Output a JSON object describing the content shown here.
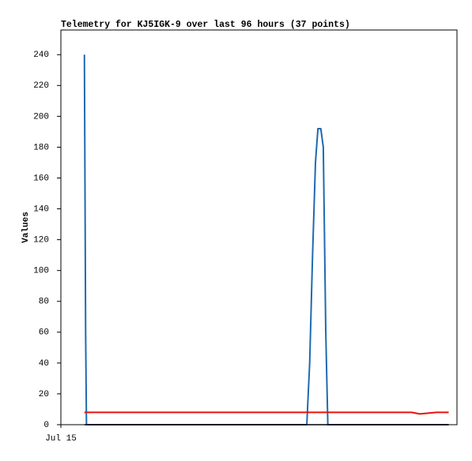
{
  "chart_data": {
    "type": "line",
    "title": "Telemetry for KJ5IGK-9 over last 96 hours (37 points)",
    "y_label": "Values",
    "x": [
      5.7,
      5.8,
      6.0,
      6.2,
      9,
      13,
      17,
      21,
      25,
      29,
      33,
      37,
      41,
      45,
      49,
      53,
      57,
      59.6,
      60.3,
      61.0,
      61.7,
      62.3,
      63.0,
      63.6,
      64.2,
      64.7,
      68,
      72,
      76,
      80,
      83,
      85,
      87,
      89,
      91,
      92.5,
      94
    ],
    "xlim": [
      0,
      96
    ],
    "xticks": [
      {
        "value": 0,
        "label": "Jul 15"
      }
    ],
    "ylim": [
      0,
      256
    ],
    "yticks": [
      0,
      20,
      40,
      60,
      80,
      100,
      120,
      140,
      160,
      180,
      200,
      220,
      240
    ],
    "grid": false,
    "series": [
      {
        "color": "#1f6ab0",
        "values": [
          240,
          180,
          60,
          0,
          0,
          0,
          0,
          0,
          0,
          0,
          0,
          0,
          0,
          0,
          0,
          0,
          0,
          0,
          40,
          110,
          170,
          192,
          192,
          180,
          60,
          0,
          0,
          0,
          0,
          0,
          0,
          0,
          0,
          0,
          0,
          0,
          0
        ]
      },
      {
        "color": "#e8120c",
        "values": [
          8,
          8,
          8,
          8,
          8,
          8,
          8,
          8,
          8,
          8,
          8,
          8,
          8,
          8,
          8,
          8,
          8,
          8,
          8,
          8,
          8,
          8,
          8,
          8,
          8,
          8,
          8,
          8,
          8,
          8,
          8,
          8,
          7,
          7.5,
          8,
          8,
          8
        ]
      },
      {
        "color": "#000000",
        "values": [
          0,
          0,
          0,
          0,
          0,
          0,
          0,
          0,
          0,
          0,
          0,
          0,
          0,
          0,
          0,
          0,
          0,
          0,
          0,
          0,
          0,
          0,
          0,
          0,
          0,
          0,
          0,
          0,
          0,
          0,
          0,
          0,
          0,
          0,
          0,
          0,
          0
        ]
      }
    ]
  }
}
